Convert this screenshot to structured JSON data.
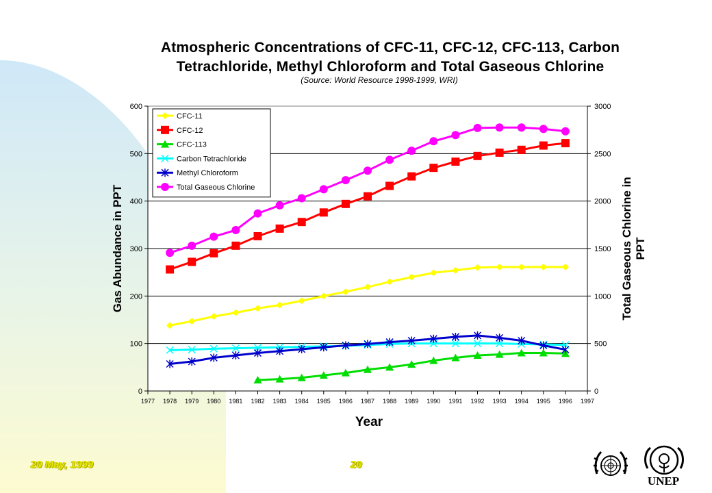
{
  "title_line1": "Atmospheric Concentrations of CFC-11, CFC-12, CFC-113, Carbon",
  "title_line2": "Tetrachloride, Methyl Chloroform and Total Gaseous Chlorine",
  "source": "(Source: World Resource 1998-1999, WRI)",
  "footer": {
    "date": "20 May, 1999",
    "page": "20"
  },
  "logos": {
    "un": "United Nations emblem",
    "unep": "UNEP"
  },
  "colors": {
    "background_arc_top": "#cfe8f8",
    "background_arc_bottom": "#fdfbd0",
    "footer_text": "#e8e800"
  },
  "chart_data": {
    "type": "line",
    "xlabel": "Year",
    "ylabel": "Gas Abundance in PPT",
    "y2label": "Total Gaseous Chlorine in PPT",
    "xlim": [
      1977,
      1997
    ],
    "ylim": [
      0,
      600
    ],
    "y2lim": [
      0,
      3000
    ],
    "x_ticks": [
      1977,
      1978,
      1979,
      1980,
      1981,
      1982,
      1983,
      1984,
      1985,
      1986,
      1987,
      1988,
      1989,
      1990,
      1991,
      1992,
      1993,
      1994,
      1995,
      1996,
      1997
    ],
    "y_ticks": [
      0,
      100,
      200,
      300,
      400,
      500,
      600
    ],
    "y2_ticks": [
      0,
      500,
      1000,
      1500,
      2000,
      2500,
      3000
    ],
    "grid": "horizontal",
    "legend_position": "top-left",
    "series": [
      {
        "name": "CFC-11",
        "axis": "left",
        "color": "#ffff00",
        "marker": "diamond",
        "x": [
          1978,
          1979,
          1980,
          1981,
          1982,
          1983,
          1984,
          1985,
          1986,
          1987,
          1988,
          1989,
          1990,
          1991,
          1992,
          1993,
          1994,
          1995,
          1996
        ],
        "values": [
          138,
          147,
          157,
          165,
          174,
          181,
          190,
          200,
          209,
          219,
          230,
          240,
          249,
          254,
          260,
          261,
          261,
          261,
          261
        ]
      },
      {
        "name": "CFC-12",
        "axis": "left",
        "color": "#ff0000",
        "marker": "square",
        "x": [
          1978,
          1979,
          1980,
          1981,
          1982,
          1983,
          1984,
          1985,
          1986,
          1987,
          1988,
          1989,
          1990,
          1991,
          1992,
          1993,
          1994,
          1995,
          1996
        ],
        "values": [
          256,
          272,
          290,
          306,
          326,
          342,
          356,
          376,
          394,
          410,
          432,
          452,
          470,
          483,
          495,
          502,
          508,
          517,
          522
        ]
      },
      {
        "name": "CFC-113",
        "axis": "left",
        "color": "#00dd00",
        "marker": "triangle",
        "x": [
          1982,
          1983,
          1984,
          1985,
          1986,
          1987,
          1988,
          1989,
          1990,
          1991,
          1992,
          1993,
          1994,
          1995,
          1996
        ],
        "values": [
          23,
          25,
          28,
          33,
          38,
          45,
          50,
          56,
          64,
          70,
          75,
          77,
          80,
          80,
          79
        ]
      },
      {
        "name": "Carbon Tetrachloride",
        "axis": "left",
        "color": "#00ffff",
        "marker": "x",
        "x": [
          1978,
          1979,
          1980,
          1981,
          1982,
          1983,
          1984,
          1985,
          1986,
          1987,
          1988,
          1989,
          1990,
          1991,
          1992,
          1993,
          1994,
          1995,
          1996
        ],
        "values": [
          86,
          87,
          89,
          90,
          91,
          92,
          93,
          94,
          95,
          97,
          99,
          100,
          100,
          100,
          100,
          100,
          99,
          98,
          97
        ]
      },
      {
        "name": "Methyl Chloroform",
        "axis": "left",
        "color": "#0000cc",
        "marker": "asterisk",
        "x": [
          1978,
          1979,
          1980,
          1981,
          1982,
          1983,
          1984,
          1985,
          1986,
          1987,
          1988,
          1989,
          1990,
          1991,
          1992,
          1993,
          1994,
          1995,
          1996
        ],
        "values": [
          57,
          62,
          70,
          75,
          80,
          84,
          88,
          92,
          96,
          99,
          103,
          106,
          110,
          114,
          117,
          112,
          106,
          96,
          87
        ]
      },
      {
        "name": "Total Gaseous Chlorine",
        "axis": "right",
        "color": "#ff00ff",
        "marker": "circle",
        "x": [
          1978,
          1979,
          1980,
          1981,
          1982,
          1983,
          1984,
          1985,
          1986,
          1987,
          1988,
          1989,
          1990,
          1991,
          1992,
          1993,
          1994,
          1995,
          1996
        ],
        "values": [
          1455,
          1530,
          1625,
          1695,
          1870,
          1955,
          2030,
          2125,
          2220,
          2320,
          2435,
          2530,
          2630,
          2695,
          2770,
          2775,
          2775,
          2760,
          2735
        ]
      }
    ]
  }
}
